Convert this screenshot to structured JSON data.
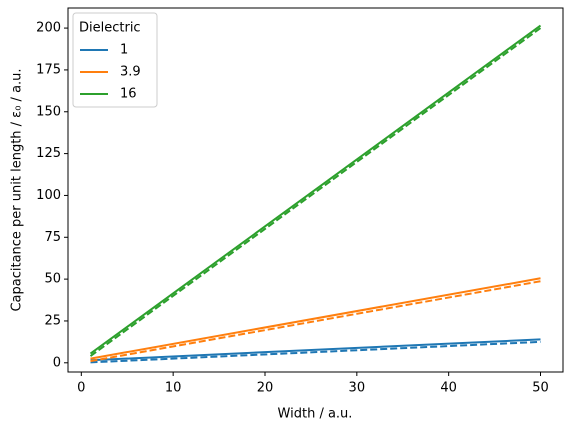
{
  "chart_data": {
    "type": "line",
    "xlabel": "Width / a.u.",
    "ylabel": "Capacitance per unit length / ε₀ / a.u.",
    "x": [
      1,
      50
    ],
    "series": [
      {
        "name": "1",
        "color": "#1f77b4",
        "values": [
          1.5,
          14
        ]
      },
      {
        "name": "3.9",
        "color": "#ff7f0e",
        "values": [
          2.5,
          50.5
        ]
      },
      {
        "name": "16",
        "color": "#2ca02c",
        "values": [
          5.5,
          201.5
        ]
      },
      {
        "color": "#1f77b4",
        "dash": true,
        "values": [
          0.25,
          12.5
        ]
      },
      {
        "color": "#ff7f0e",
        "dash": true,
        "values": [
          1,
          48.75
        ]
      },
      {
        "color": "#2ca02c",
        "dash": true,
        "values": [
          4,
          200
        ]
      }
    ],
    "legend_title": "Dielectric",
    "legend": "upper left",
    "xlim": [
      -1.45,
      52.45
    ],
    "xticks": [
      0,
      10,
      20,
      30,
      40,
      50
    ],
    "ylim": [
      -5.5,
      212
    ],
    "yticks": [
      0,
      25,
      50,
      75,
      100,
      125,
      150,
      175,
      200
    ]
  }
}
